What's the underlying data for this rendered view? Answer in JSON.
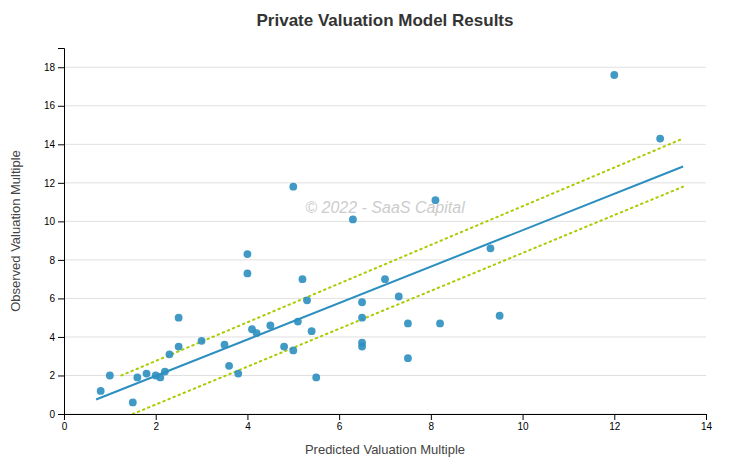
{
  "chart_data": {
    "type": "scatter",
    "title": "Private Valuation Model Results",
    "xlabel": "Predicted Valuation Multiple",
    "ylabel": "Observed Valuation Multiple",
    "xlim": [
      0,
      14
    ],
    "ylim": [
      0,
      19
    ],
    "xticks": [
      0,
      2,
      4,
      6,
      8,
      10,
      12,
      14
    ],
    "yticks": [
      0,
      2,
      4,
      6,
      8,
      10,
      12,
      14,
      16,
      18
    ],
    "grid": "y",
    "series": [
      {
        "type": "scatter",
        "marker": "circle",
        "color": "#2C8FBF",
        "x": [
          0.8,
          1.0,
          1.5,
          1.6,
          1.8,
          2.0,
          2.1,
          2.2,
          2.3,
          2.5,
          2.5,
          3.0,
          3.5,
          3.6,
          3.8,
          4.0,
          4.0,
          4.1,
          4.2,
          4.5,
          4.8,
          5.0,
          5.0,
          5.1,
          5.2,
          5.3,
          5.4,
          5.5,
          6.3,
          6.5,
          6.5,
          6.5,
          6.5,
          7.0,
          7.3,
          7.5,
          7.5,
          8.1,
          8.2,
          9.3,
          9.5,
          12.0,
          13.0
        ],
        "values": [
          1.2,
          2.0,
          0.6,
          1.9,
          2.1,
          2.0,
          1.9,
          2.2,
          3.1,
          5.0,
          3.5,
          3.8,
          3.6,
          2.5,
          2.1,
          8.3,
          7.3,
          4.4,
          4.2,
          4.6,
          3.5,
          3.3,
          11.8,
          4.8,
          7.0,
          5.9,
          4.3,
          1.9,
          10.1,
          5.8,
          5.0,
          3.7,
          3.5,
          7.0,
          6.1,
          4.7,
          2.9,
          11.1,
          4.7,
          8.6,
          5.1,
          17.6,
          14.3
        ]
      },
      {
        "type": "line",
        "line_style": "solid",
        "color": "#2C8FBF",
        "x": [
          0.7,
          13.5
        ],
        "values": [
          0.75,
          12.85
        ]
      },
      {
        "type": "line",
        "line_style": "dotted",
        "color": "#AACC00",
        "x": [
          1.25,
          13.5
        ],
        "values": [
          2.0,
          14.3
        ]
      },
      {
        "type": "line",
        "line_style": "dotted",
        "color": "#AACC00",
        "x": [
          1.5,
          13.5
        ],
        "values": [
          0.0,
          11.8
        ]
      }
    ],
    "annotations": [
      {
        "text": "© 2022 - SaaS Capital"
      }
    ]
  }
}
